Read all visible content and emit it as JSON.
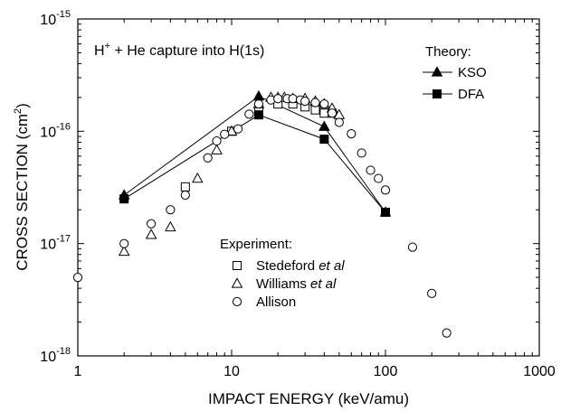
{
  "chart_data": {
    "type": "scatter",
    "annotation": {
      "prefix": "H",
      "superscript": "+",
      "suffix": " + He capture into H(1s)"
    },
    "xlabel": "IMPACT ENERGY (keV/amu)",
    "ylabel": {
      "main": "CROSS SECTION (cm",
      "superscript": "2",
      "close": ")"
    },
    "xscale": "log",
    "yscale": "log",
    "xlim": [
      1,
      1000
    ],
    "ylim": [
      1e-18,
      1e-15
    ],
    "x_ticks": [
      {
        "value": 1,
        "label": "1"
      },
      {
        "value": 10,
        "label": "10"
      },
      {
        "value": 100,
        "label": "100"
      },
      {
        "value": 1000,
        "label": "1000"
      }
    ],
    "y_ticks": [
      {
        "value": 1e-18,
        "base": "10",
        "exp": "-18"
      },
      {
        "value": 1e-17,
        "base": "10",
        "exp": "-17"
      },
      {
        "value": 1e-16,
        "base": "10",
        "exp": "-16"
      },
      {
        "value": 1e-15,
        "base": "10",
        "exp": "-15"
      }
    ],
    "grid": false,
    "theory_legend_title": "Theory:",
    "experiment_legend_title": "Experiment:",
    "series": [
      {
        "name": "KSO",
        "group": "theory",
        "marker": "filled-triangle",
        "line": true,
        "x": [
          2,
          15,
          40,
          100
        ],
        "y": [
          2.7e-17,
          2.05e-16,
          1.1e-16,
          1.9e-17
        ]
      },
      {
        "name": "DFA",
        "group": "theory",
        "marker": "filled-square",
        "line": true,
        "x": [
          2,
          15,
          40,
          100
        ],
        "y": [
          2.5e-17,
          1.4e-16,
          8.5e-17,
          1.9e-17
        ]
      },
      {
        "name": "Stedeford et al",
        "name_plain": "Stedeford ",
        "name_italic": "et al",
        "group": "experiment",
        "marker": "open-square",
        "line": false,
        "x": [
          5,
          10,
          15,
          20,
          25,
          30,
          35,
          40,
          45
        ],
        "y": [
          3.2e-17,
          1e-16,
          1.6e-16,
          1.75e-16,
          1.75e-16,
          1.65e-16,
          1.55e-16,
          1.45e-16,
          1.45e-16
        ]
      },
      {
        "name": "Williams et al",
        "name_plain": "Williams ",
        "name_italic": "et al",
        "group": "experiment",
        "marker": "open-triangle",
        "line": false,
        "x": [
          2,
          3,
          4,
          6,
          8,
          10,
          15,
          18,
          20,
          22,
          25,
          30,
          35,
          40,
          45,
          50
        ],
        "y": [
          8.5e-18,
          1.2e-17,
          1.4e-17,
          3.8e-17,
          6.8e-17,
          1e-16,
          1.75e-16,
          2e-16,
          2e-16,
          2e-16,
          1.95e-16,
          1.95e-16,
          1.85e-16,
          1.75e-16,
          1.6e-16,
          1.4e-16
        ]
      },
      {
        "name": "Allison",
        "group": "experiment",
        "marker": "open-circle",
        "line": false,
        "x": [
          1,
          2,
          3,
          4,
          5,
          7,
          8,
          9,
          11,
          13,
          15,
          18,
          20,
          23,
          25,
          28,
          30,
          35,
          40,
          45,
          50,
          60,
          70,
          80,
          90,
          100,
          150,
          200,
          250
        ],
        "y": [
          5e-18,
          1e-17,
          1.5e-17,
          2e-17,
          2.7e-17,
          5.8e-17,
          8.2e-17,
          9.4e-17,
          1.05e-16,
          1.42e-16,
          1.75e-16,
          1.9e-16,
          1.95e-16,
          1.95e-16,
          1.95e-16,
          1.9e-16,
          1.85e-16,
          1.8e-16,
          1.75e-16,
          1.45e-16,
          1.2e-16,
          9.5e-17,
          6.4e-17,
          4.5e-17,
          3.8e-17,
          3e-17,
          9.3e-18,
          3.6e-18,
          1.6e-18
        ]
      }
    ]
  }
}
